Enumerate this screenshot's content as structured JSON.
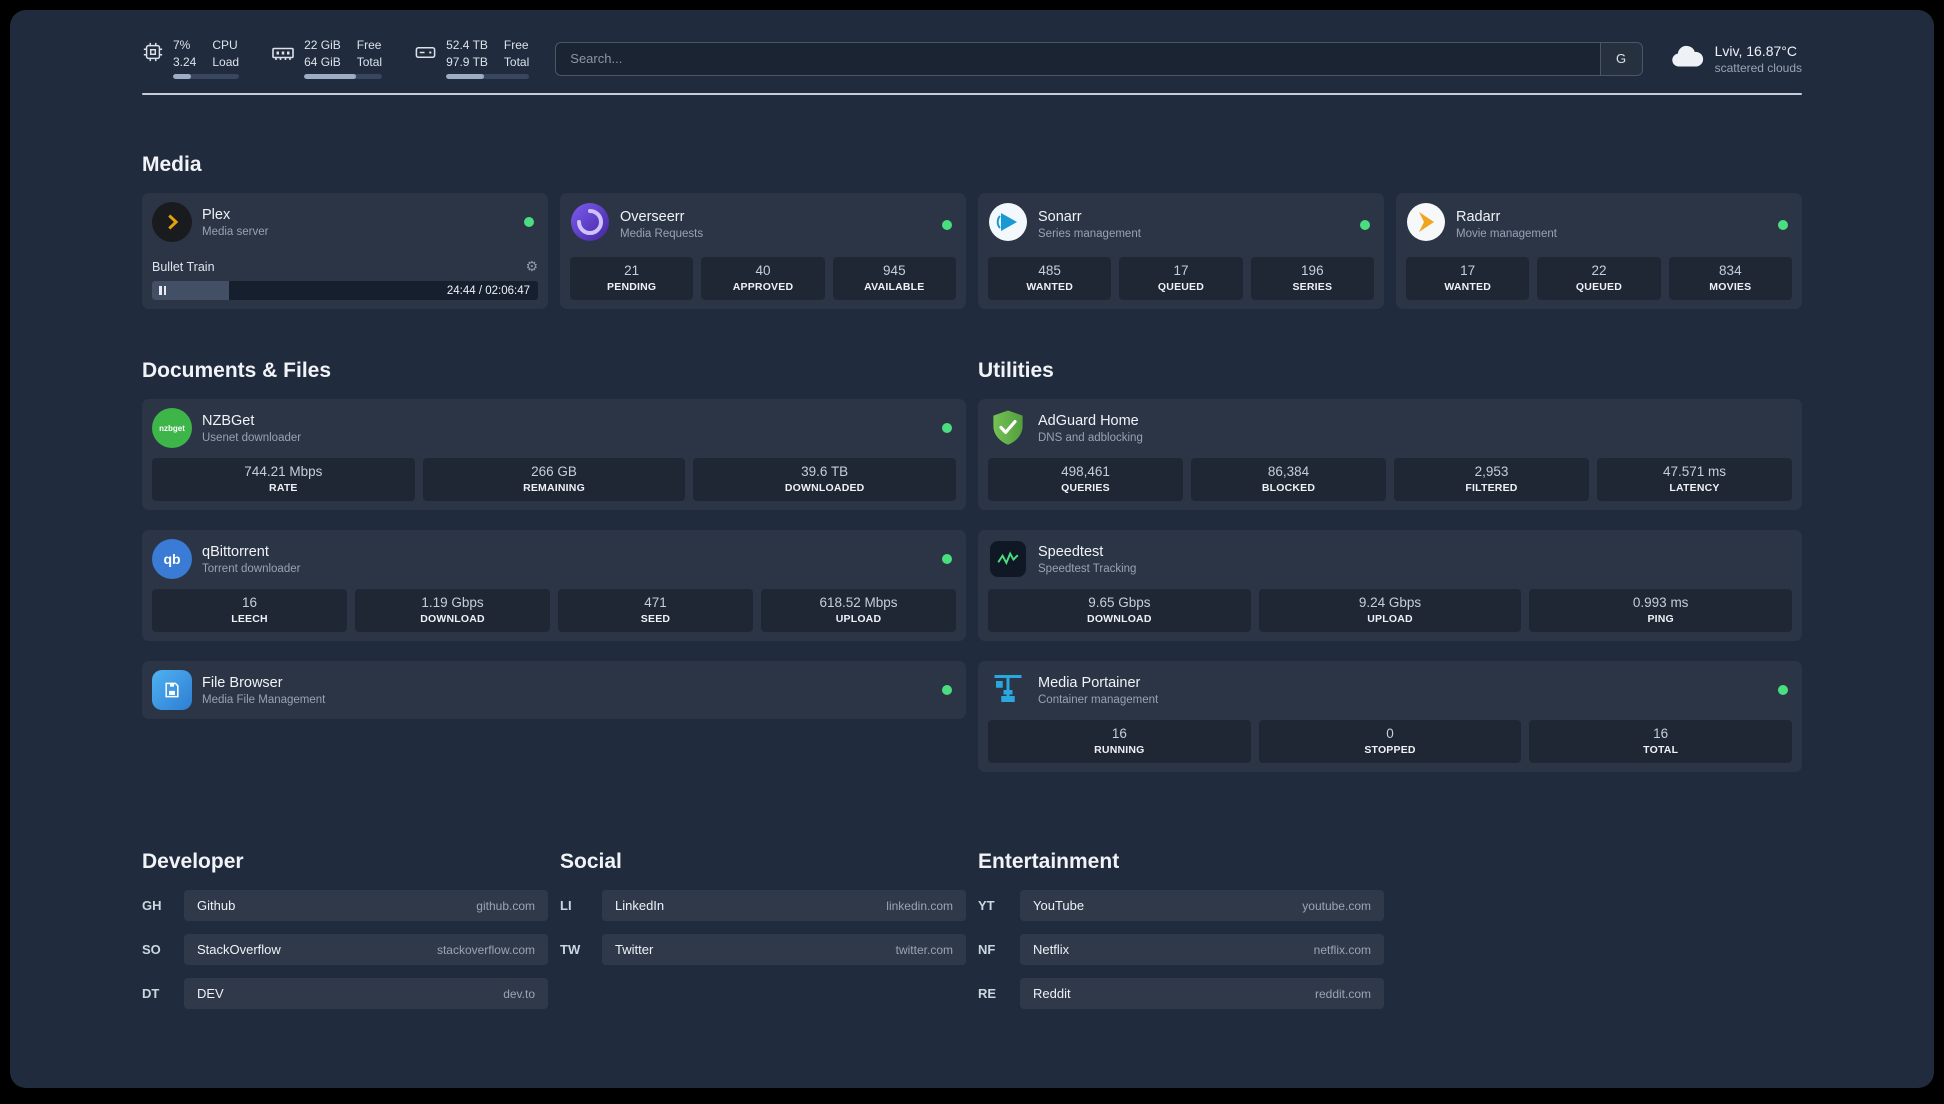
{
  "colors": {
    "background": "#202b3d",
    "status_online": "#4ade80",
    "accent_plex": "#e5a00d",
    "accent_adguard": "#68bc4b",
    "accent_portainer": "#29a8e0"
  },
  "icons": {
    "cpu": "chip-outline",
    "memory": "ram-stick-outline",
    "disk": "drive-outline",
    "weather": "cloud",
    "gear": "gear",
    "pause": "pause-bars",
    "status": "green-dot",
    "plex": "amber-chevron-on-dark-circle",
    "overseerr": "purple-swirl-circle",
    "sonarr": "blue-play-on-white-circle",
    "radarr": "amber-play-on-white-circle",
    "nzbget": "green-circle-wordmark",
    "qbittorrent": "blue-circle-qb",
    "filebrowser": "blue-square-floppy",
    "adguard": "green-shield-check",
    "speedtest": "green-waveform-tile",
    "portainer": "blue-crane-containers"
  },
  "topbar": {
    "cpu": {
      "percent": "7%",
      "load_value": "3.24",
      "label_top": "CPU",
      "label_bottom": "Load",
      "bar_percent": 28
    },
    "memory": {
      "free_value": "22 GiB",
      "free_label": "Free",
      "total_value": "64 GiB",
      "total_label": "Total",
      "bar_percent": 66
    },
    "disk": {
      "free_value": "52.4 TB",
      "free_label": "Free",
      "total_value": "97.9 TB",
      "total_label": "Total",
      "bar_percent": 46
    },
    "search": {
      "placeholder": "Search...",
      "provider_label": "G"
    },
    "weather": {
      "location": "Lviv, 16.87°C",
      "condition": "scattered clouds"
    }
  },
  "media": {
    "heading": "Media",
    "plex": {
      "name": "Plex",
      "description": "Media server",
      "status": "online",
      "now_playing": {
        "title": "Bullet Train",
        "time": "24:44 / 02:06:47",
        "progress_percent": 20
      }
    },
    "overseerr": {
      "name": "Overseerr",
      "description": "Media Requests",
      "status": "online",
      "stats": [
        {
          "value": "21",
          "label": "PENDING"
        },
        {
          "value": "40",
          "label": "APPROVED"
        },
        {
          "value": "945",
          "label": "AVAILABLE"
        }
      ]
    },
    "sonarr": {
      "name": "Sonarr",
      "description": "Series management",
      "status": "online",
      "stats": [
        {
          "value": "485",
          "label": "WANTED"
        },
        {
          "value": "17",
          "label": "QUEUED"
        },
        {
          "value": "196",
          "label": "SERIES"
        }
      ]
    },
    "radarr": {
      "name": "Radarr",
      "description": "Movie management",
      "status": "online",
      "stats": [
        {
          "value": "17",
          "label": "WANTED"
        },
        {
          "value": "22",
          "label": "QUEUED"
        },
        {
          "value": "834",
          "label": "MOVIES"
        }
      ]
    }
  },
  "documents": {
    "heading": "Documents & Files",
    "nzbget": {
      "name": "NZBGet",
      "description": "Usenet downloader",
      "status": "online",
      "icon_text": "nzbget",
      "stats": [
        {
          "value": "744.21 Mbps",
          "label": "RATE"
        },
        {
          "value": "266 GB",
          "label": "REMAINING"
        },
        {
          "value": "39.6 TB",
          "label": "DOWNLOADED"
        }
      ]
    },
    "qbittorrent": {
      "name": "qBittorrent",
      "description": "Torrent downloader",
      "status": "online",
      "icon_text": "qb",
      "stats": [
        {
          "value": "16",
          "label": "LEECH"
        },
        {
          "value": "1.19 Gbps",
          "label": "DOWNLOAD"
        },
        {
          "value": "471",
          "label": "SEED"
        },
        {
          "value": "618.52 Mbps",
          "label": "UPLOAD"
        }
      ]
    },
    "filebrowser": {
      "name": "File Browser",
      "description": "Media File Management",
      "status": "online"
    }
  },
  "utilities": {
    "heading": "Utilities",
    "adguard": {
      "name": "AdGuard Home",
      "description": "DNS and adblocking",
      "stats": [
        {
          "value": "498,461",
          "label": "QUERIES"
        },
        {
          "value": "86,384",
          "label": "BLOCKED"
        },
        {
          "value": "2,953",
          "label": "FILTERED"
        },
        {
          "value": "47.571 ms",
          "label": "LATENCY"
        }
      ]
    },
    "speedtest": {
      "name": "Speedtest",
      "description": "Speedtest Tracking",
      "stats": [
        {
          "value": "9.65 Gbps",
          "label": "DOWNLOAD"
        },
        {
          "value": "9.24 Gbps",
          "label": "UPLOAD"
        },
        {
          "value": "0.993 ms",
          "label": "PING"
        }
      ]
    },
    "portainer": {
      "name": "Media Portainer",
      "description": "Container management",
      "status": "online",
      "stats": [
        {
          "value": "16",
          "label": "RUNNING"
        },
        {
          "value": "0",
          "label": "STOPPED"
        },
        {
          "value": "16",
          "label": "TOTAL"
        }
      ]
    }
  },
  "bookmarks": {
    "developer": {
      "heading": "Developer",
      "items": [
        {
          "abbr": "GH",
          "name": "Github",
          "url": "github.com"
        },
        {
          "abbr": "SO",
          "name": "StackOverflow",
          "url": "stackoverflow.com"
        },
        {
          "abbr": "DT",
          "name": "DEV",
          "url": "dev.to"
        }
      ]
    },
    "social": {
      "heading": "Social",
      "items": [
        {
          "abbr": "LI",
          "name": "LinkedIn",
          "url": "linkedin.com"
        },
        {
          "abbr": "TW",
          "name": "Twitter",
          "url": "twitter.com"
        }
      ]
    },
    "entertainment": {
      "heading": "Entertainment",
      "items": [
        {
          "abbr": "YT",
          "name": "YouTube",
          "url": "youtube.com"
        },
        {
          "abbr": "NF",
          "name": "Netflix",
          "url": "netflix.com"
        },
        {
          "abbr": "RE",
          "name": "Reddit",
          "url": "reddit.com"
        }
      ]
    }
  }
}
